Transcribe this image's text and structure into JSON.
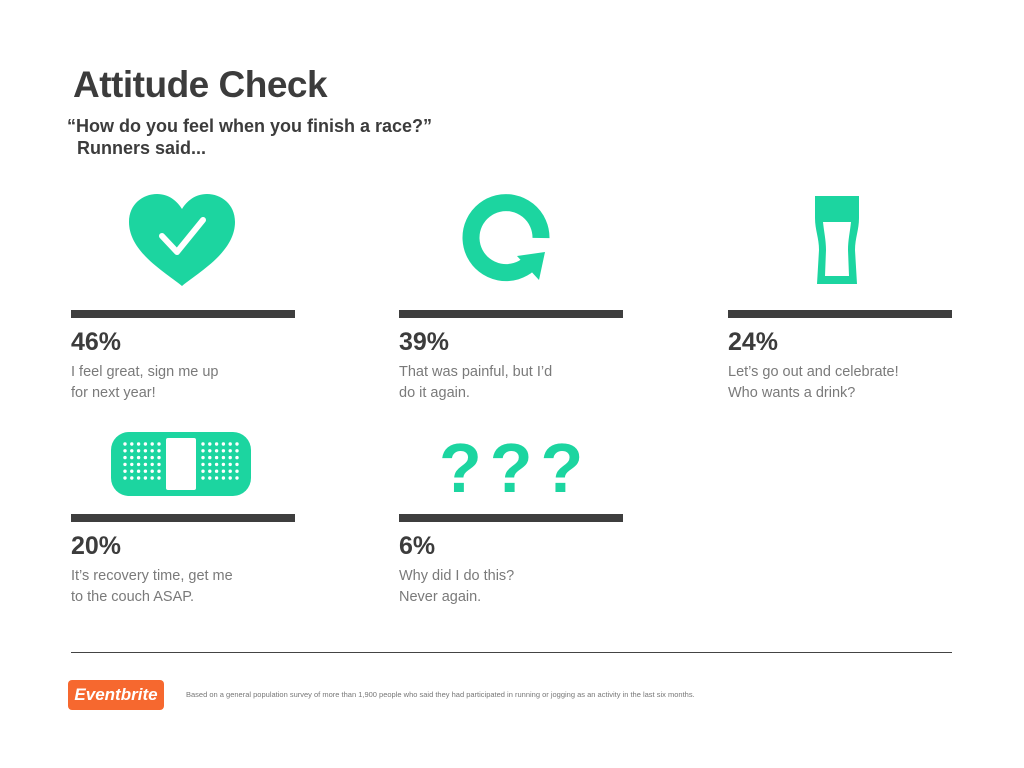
{
  "header": {
    "title": "Attitude Check",
    "question": "“How do you feel when you finish a race?”",
    "subtitle": "Runners said..."
  },
  "colors": {
    "accent": "#1cd5a0",
    "bar": "#3e3e3e",
    "text_dark": "#3c3c3c",
    "text_muted": "#7a7a7a",
    "brand": "#f6682f"
  },
  "chart_data": {
    "type": "bar",
    "title": "Attitude Check",
    "subtitle": "“How do you feel when you finish a race?” Runners said...",
    "categories": [
      "I feel great, sign me up for next year!",
      "That was painful, but I’d do it again.",
      "Let’s go out and celebrate! Who wants a drink?",
      "It’s recovery time, get me to the couch ASAP.",
      "Why did I do this? Never again."
    ],
    "values": [
      46,
      39,
      24,
      20,
      6
    ],
    "unit": "%"
  },
  "items": [
    {
      "percent": "46%",
      "icon": "heart-check-icon",
      "desc_lines": [
        "I feel great, sign me up",
        "for next year!"
      ]
    },
    {
      "percent": "39%",
      "icon": "circular-arrow-icon",
      "desc_lines": [
        "That was painful, but I’d",
        "do it again."
      ]
    },
    {
      "percent": "24%",
      "icon": "pint-glass-icon",
      "desc_lines": [
        "Let’s go out and celebrate!",
        "Who wants a drink?"
      ]
    },
    {
      "percent": "20%",
      "icon": "bandage-icon",
      "desc_lines": [
        "It’s recovery time, get me",
        "to the couch ASAP."
      ]
    },
    {
      "percent": "6%",
      "icon": "question-marks-icon",
      "icon_text": "???",
      "desc_lines": [
        "Why did I do this?",
        "Never again."
      ]
    }
  ],
  "footer": {
    "brand": "Eventbrite",
    "note": "Based on a general population survey of more than 1,900 people who said they had participated in running or jogging as an activity in the last six months."
  }
}
